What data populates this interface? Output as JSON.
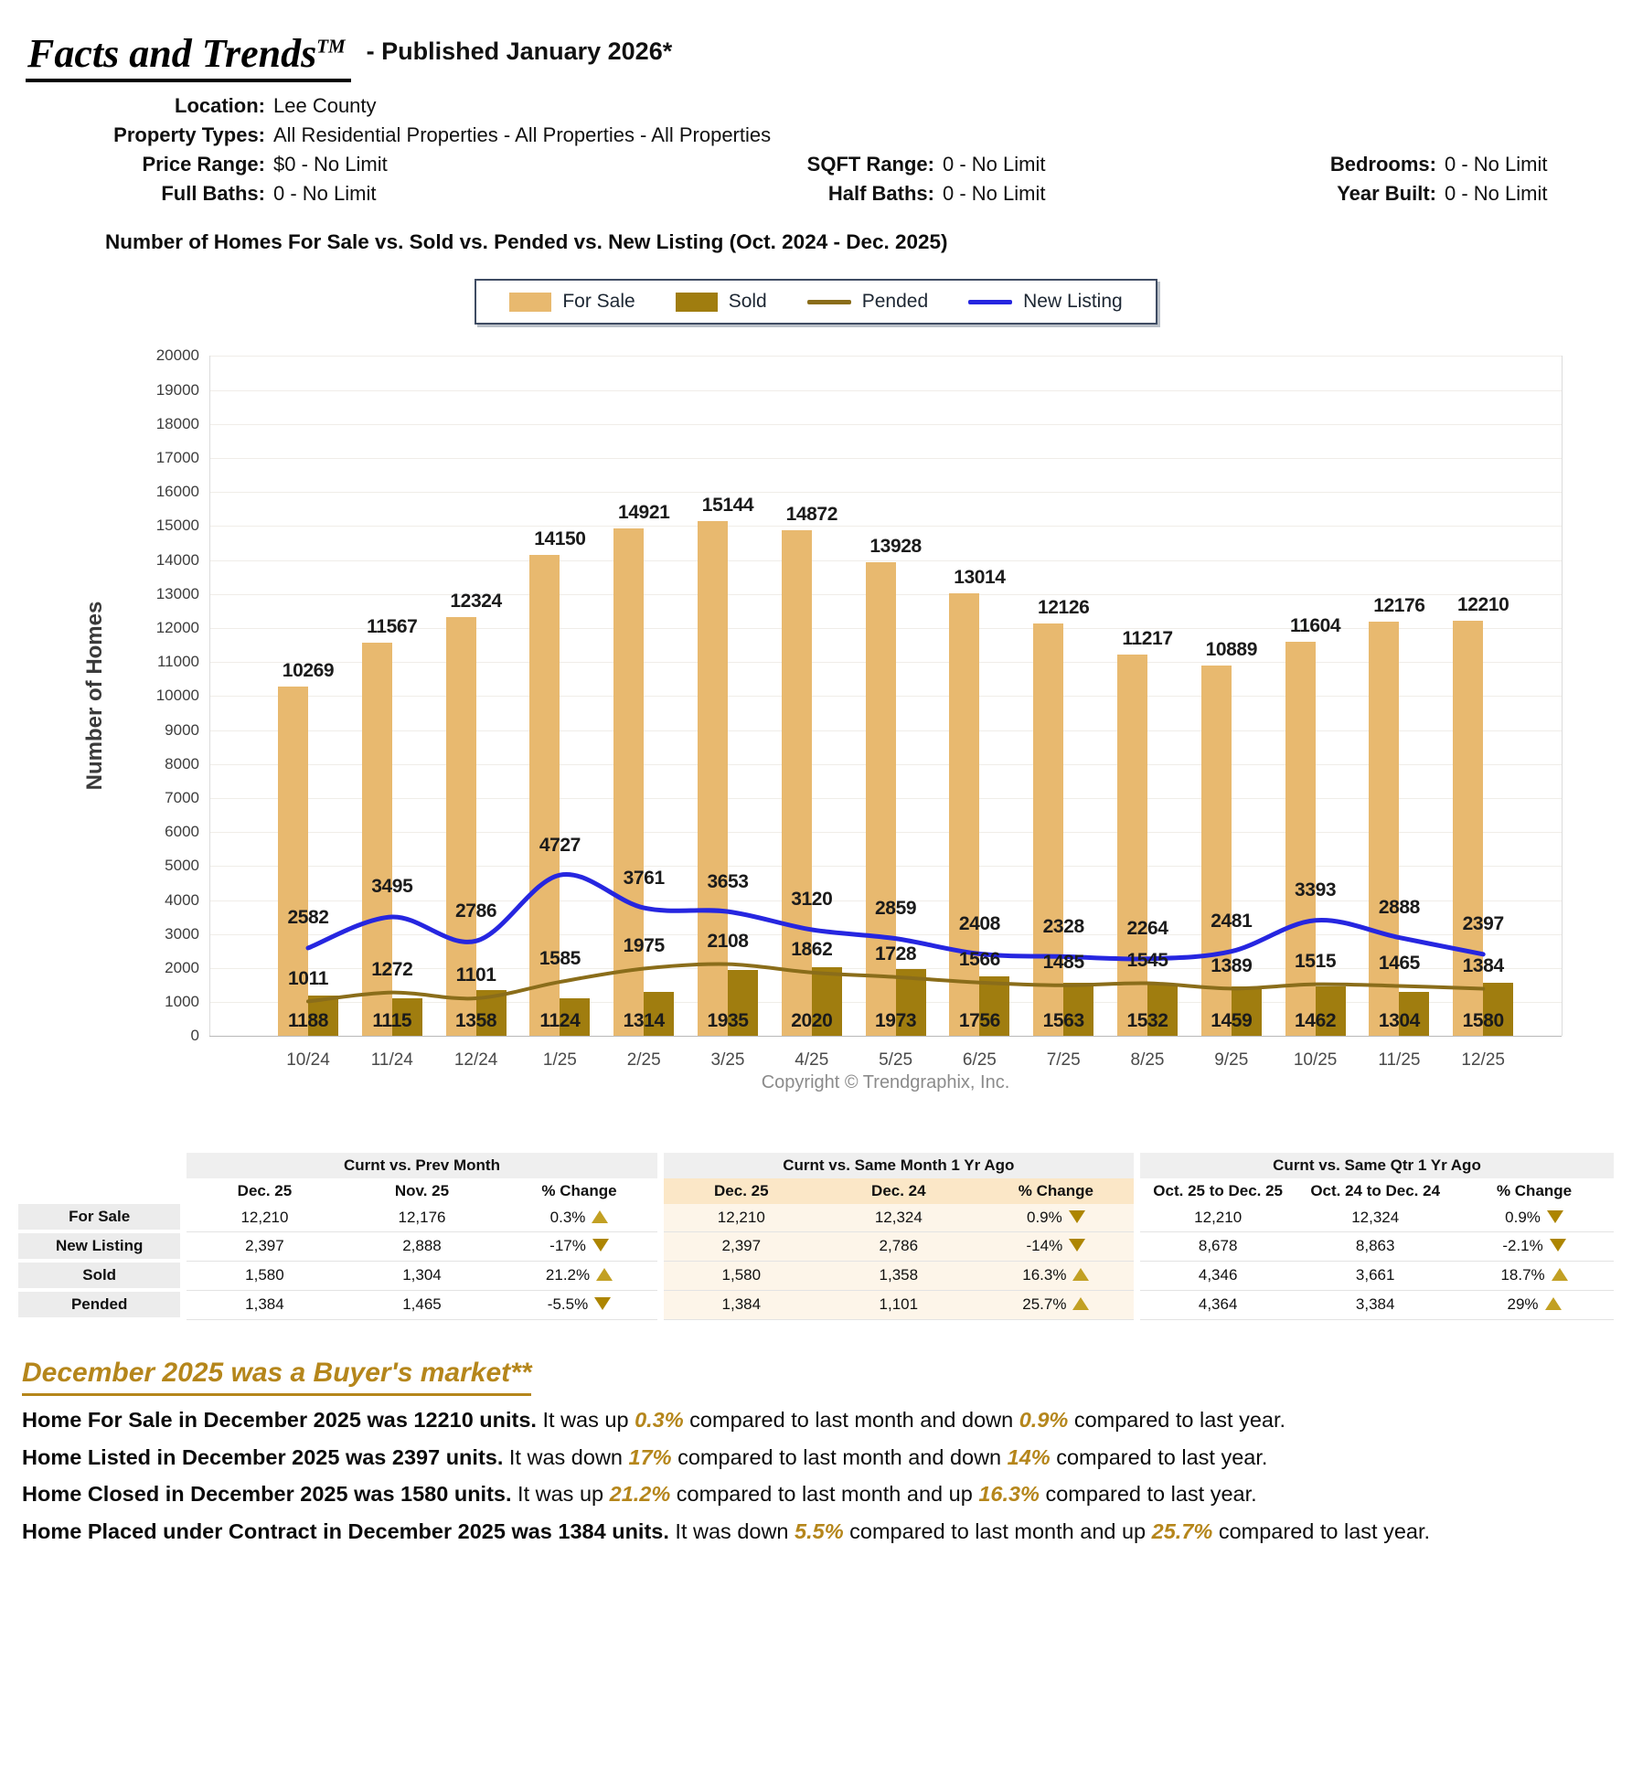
{
  "page": {
    "title": "Facts and Trends",
    "trademark": "TM",
    "published": "- Published January 2026*"
  },
  "meta": {
    "rows": [
      [
        {
          "label": "Location:",
          "value": "Lee County"
        }
      ],
      [
        {
          "label": "Property Types:",
          "value": "All Residential Properties - All Properties - All Properties"
        }
      ],
      [
        {
          "label": "Price Range:",
          "value": "$0 - No Limit"
        },
        {
          "label": "SQFT Range:",
          "value": "0 - No Limit"
        },
        {
          "label": "Bedrooms:",
          "value": "0 - No Limit"
        }
      ],
      [
        {
          "label": "Full Baths:",
          "value": "0 - No Limit"
        },
        {
          "label": "Half Baths:",
          "value": "0 - No Limit"
        },
        {
          "label": "Year Built:",
          "value": "0 - No Limit"
        }
      ]
    ]
  },
  "chart_section_title": "Number of Homes For Sale vs. Sold vs. Pended vs. New Listing (Oct. 2024 - Dec. 2025)",
  "chart_data": {
    "type": "bar+line combo",
    "categories": [
      "10/24",
      "11/24",
      "12/24",
      "1/25",
      "2/25",
      "3/25",
      "4/25",
      "5/25",
      "6/25",
      "7/25",
      "8/25",
      "9/25",
      "10/25",
      "11/25",
      "12/25"
    ],
    "series": [
      {
        "name": "For Sale",
        "type": "bar",
        "color": "#E8B96F",
        "values": [
          10269,
          11567,
          12324,
          14150,
          14921,
          15144,
          14872,
          13928,
          13014,
          12126,
          11217,
          10889,
          11604,
          12176,
          12210
        ]
      },
      {
        "name": "Sold",
        "type": "bar",
        "color": "#A07D0F",
        "values": [
          1188,
          1115,
          1358,
          1124,
          1314,
          1935,
          2020,
          1973,
          1756,
          1563,
          1532,
          1459,
          1462,
          1304,
          1580
        ]
      },
      {
        "name": "Pended",
        "type": "line",
        "color": "#8A6D1A",
        "values": [
          1011,
          1272,
          1101,
          1585,
          1975,
          2108,
          1862,
          1728,
          1566,
          1485,
          1545,
          1389,
          1515,
          1465,
          1384
        ]
      },
      {
        "name": "New Listing",
        "type": "line",
        "color": "#2626E0",
        "values": [
          2582,
          3495,
          2786,
          4727,
          3761,
          3653,
          3120,
          2859,
          2408,
          2328,
          2264,
          2481,
          3393,
          2888,
          2397
        ]
      }
    ],
    "ylabel": "Number of Homes",
    "ylim": [
      0,
      20000
    ],
    "ytick_step": 1000,
    "grid": true,
    "legend_position": "top-center",
    "copyright": "Copyright © Trendgraphix, Inc."
  },
  "table": {
    "groups": [
      {
        "title": "Curnt vs. Prev Month",
        "columns": [
          "Dec. 25",
          "Nov. 25",
          "% Change"
        ]
      },
      {
        "title": "Curnt vs. Same Month 1 Yr Ago",
        "columns": [
          "Dec. 25",
          "Dec. 24",
          "% Change"
        ]
      },
      {
        "title": "Curnt vs. Same Qtr 1 Yr Ago",
        "columns": [
          "Oct. 25 to Dec. 25",
          "Oct. 24 to Dec. 24",
          "% Change"
        ]
      }
    ],
    "rows": [
      {
        "label": "For Sale",
        "cells": [
          "12,210",
          "12,176",
          {
            "text": "0.3%",
            "dir": "up"
          },
          "12,210",
          "12,324",
          {
            "text": "0.9%",
            "dir": "down"
          },
          "12,210",
          "12,324",
          {
            "text": "0.9%",
            "dir": "down"
          }
        ]
      },
      {
        "label": "New Listing",
        "cells": [
          "2,397",
          "2,888",
          {
            "text": "-17%",
            "dir": "down"
          },
          "2,397",
          "2,786",
          {
            "text": "-14%",
            "dir": "down"
          },
          "8,678",
          "8,863",
          {
            "text": "-2.1%",
            "dir": "down"
          }
        ]
      },
      {
        "label": "Sold",
        "cells": [
          "1,580",
          "1,304",
          {
            "text": "21.2%",
            "dir": "up"
          },
          "1,580",
          "1,358",
          {
            "text": "16.3%",
            "dir": "up"
          },
          "4,346",
          "3,661",
          {
            "text": "18.7%",
            "dir": "up"
          }
        ]
      },
      {
        "label": "Pended",
        "cells": [
          "1,384",
          "1,465",
          {
            "text": "-5.5%",
            "dir": "down"
          },
          "1,384",
          "1,101",
          {
            "text": "25.7%",
            "dir": "up"
          },
          "4,364",
          "3,384",
          {
            "text": "29%",
            "dir": "up"
          }
        ]
      }
    ]
  },
  "summary": {
    "heading": "December 2025 was a Buyer's market**",
    "lines": [
      [
        {
          "t": "Home For Sale in December 2025 was 12210 units.",
          "s": "bold"
        },
        {
          "t": " It was up ",
          "s": "plain"
        },
        {
          "t": "0.3%",
          "s": "em"
        },
        {
          "t": " compared to last month and down ",
          "s": "plain"
        },
        {
          "t": "0.9%",
          "s": "em"
        },
        {
          "t": " compared to last year.",
          "s": "plain"
        }
      ],
      [
        {
          "t": "Home Listed in December 2025 was 2397 units.",
          "s": "bold"
        },
        {
          "t": " It was down ",
          "s": "plain"
        },
        {
          "t": "17%",
          "s": "em"
        },
        {
          "t": " compared to last month and down ",
          "s": "plain"
        },
        {
          "t": "14%",
          "s": "em"
        },
        {
          "t": " compared to last year.",
          "s": "plain"
        }
      ],
      [
        {
          "t": "Home Closed in December 2025 was 1580 units.",
          "s": "bold"
        },
        {
          "t": " It was up ",
          "s": "plain"
        },
        {
          "t": "21.2%",
          "s": "em"
        },
        {
          "t": " compared to last month and up ",
          "s": "plain"
        },
        {
          "t": "16.3%",
          "s": "em"
        },
        {
          "t": " compared to last year.",
          "s": "plain"
        }
      ],
      [
        {
          "t": "Home Placed under Contract in December 2025 was 1384 units.",
          "s": "bold"
        },
        {
          "t": " It was down ",
          "s": "plain"
        },
        {
          "t": "5.5%",
          "s": "em"
        },
        {
          "t": " compared to last month and up ",
          "s": "plain"
        },
        {
          "t": "25.7%",
          "s": "em"
        },
        {
          "t": " compared to last year.",
          "s": "plain"
        }
      ]
    ]
  }
}
